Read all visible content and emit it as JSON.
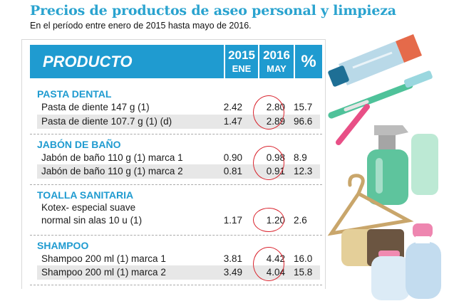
{
  "title": "Precios de productos de aseo personal y limpieza",
  "subtitle": "En el período entre enero de 2015 hasta mayo de 2016.",
  "colors": {
    "accent": "#1f9bd0",
    "circle": "#d9232d",
    "shade": "#e7e7e7"
  },
  "chart_data": {
    "type": "table",
    "title": "Precios de productos de aseo personal y limpieza",
    "columns": [
      {
        "label": "PRODUCTO"
      },
      {
        "year": "2015",
        "month": "ENE"
      },
      {
        "year": "2016",
        "month": "MAY"
      },
      {
        "label": "%"
      }
    ],
    "sections": [
      {
        "name": "PASTA DENTAL",
        "rows": [
          {
            "product": "Pasta de diente 147 g (1)",
            "ene2015": "2.42",
            "may2016": "2.80",
            "pct": "15.7"
          },
          {
            "product": "Pasta de diente 107.7 g (1) (d)",
            "ene2015": "1.47",
            "may2016": "2.89",
            "pct": "96.6"
          }
        ]
      },
      {
        "name": "JABÓN DE BAÑO",
        "rows": [
          {
            "product": "Jabón de baño  110 g (1) marca 1",
            "ene2015": "0.90",
            "may2016": "0.98",
            "pct": "8.9"
          },
          {
            "product": "Jabón de baño  110 g (1) marca 2",
            "ene2015": "0.81",
            "may2016": "0.91",
            "pct": "12.3"
          }
        ]
      },
      {
        "name": "TOALLA SANITARIA",
        "rows": [
          {
            "product": "Kotex- especial suave",
            "product_line2": "normal sin alas 10 u (1)",
            "ene2015": "1.17",
            "may2016": "1.20",
            "pct": "2.6"
          }
        ]
      },
      {
        "name": "SHAMPOO",
        "rows": [
          {
            "product": "Shampoo 200 ml (1) marca 1",
            "ene2015": "3.81",
            "may2016": "4.42",
            "pct": "16.0"
          },
          {
            "product": "Shampoo 200 ml (1) marca 2",
            "ene2015": "3.49",
            "may2016": "4.04",
            "pct": "15.8"
          }
        ]
      }
    ]
  },
  "illustration": {
    "icons": [
      "toothpaste-tube-icon",
      "toothbrush-icon",
      "spray-bottle-icon",
      "hanger-icon",
      "soap-bar-icon",
      "shampoo-bottle-icon"
    ]
  }
}
